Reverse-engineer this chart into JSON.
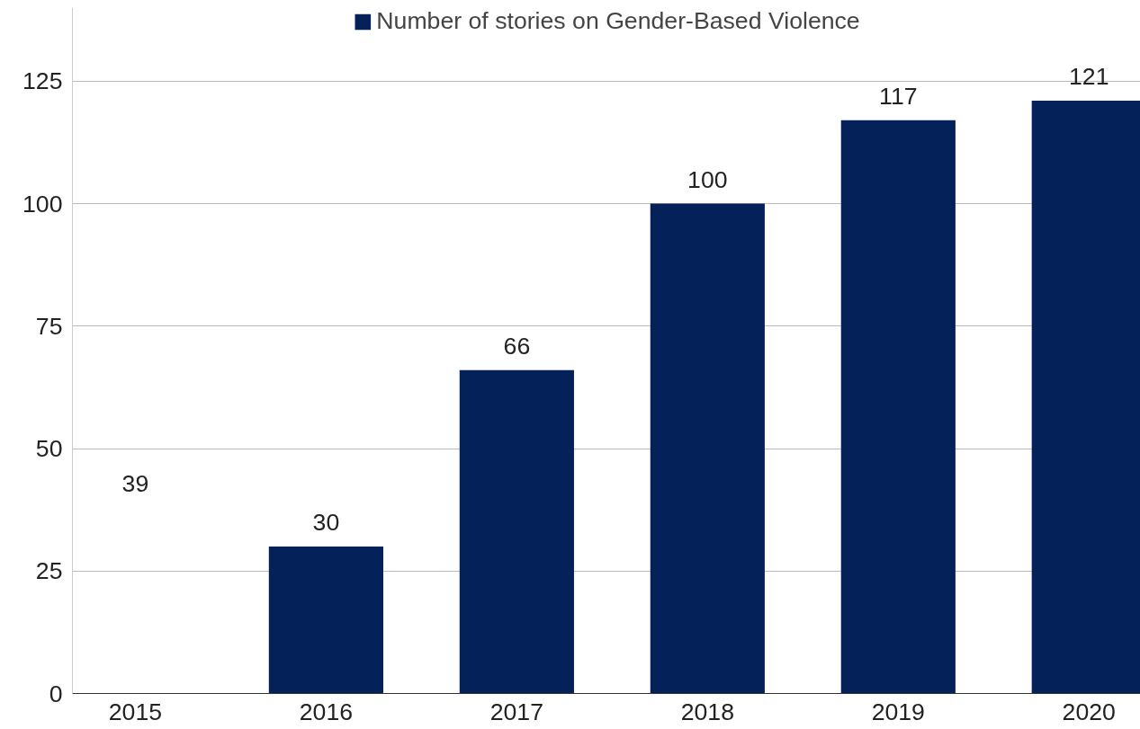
{
  "chart_data": {
    "type": "bar",
    "categories": [
      "2015",
      "2016",
      "2017",
      "2018",
      "2019",
      "2020"
    ],
    "series": [
      {
        "name": "Number of stories on Gender-Based Violence",
        "color": "#05215a",
        "values": [
          null,
          30,
          66,
          100,
          117,
          121
        ]
      }
    ],
    "annotations": [
      "39"
    ],
    "ylim": [
      0,
      140
    ],
    "yticks": [
      0,
      25,
      50,
      75,
      100,
      125
    ],
    "grid": "y",
    "legend": "top",
    "data_labels": true
  }
}
